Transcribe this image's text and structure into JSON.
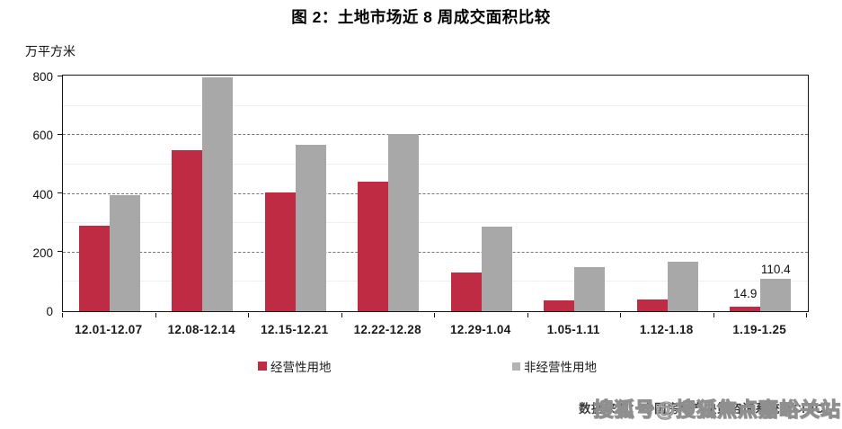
{
  "title": "图 2：土地市场近 8 周成交面积比较",
  "chart_data": {
    "type": "bar",
    "title": "图 2：土地市场近 8 周成交面积比较",
    "unit_label": "万平方米",
    "xlabel": "",
    "ylabel": "万平方米",
    "ylim": [
      0,
      800
    ],
    "yticks": [
      0,
      200,
      400,
      600,
      800
    ],
    "grid": "horizontal dashed at 200/400/600, faint minor at 100/300/500/700",
    "legend_position": "bottom",
    "categories": [
      "12.01-12.07",
      "12.08-12.14",
      "12.15-12.21",
      "12.22-12.28",
      "12.29-1.04",
      "1.05-1.11",
      "1.12-1.18",
      "1.19-1.25"
    ],
    "series": [
      {
        "name": "经营性用地",
        "color": "#be2b42",
        "values": [
          290,
          548,
          404,
          440,
          131,
          38,
          40,
          14.9
        ]
      },
      {
        "name": "非经营性用地",
        "color": "#a8a8a8",
        "values": [
          394,
          796,
          566,
          604,
          289,
          149,
          168,
          110.4
        ]
      }
    ],
    "annotations": [
      {
        "series_index": 0,
        "category_index": 7,
        "text": "14.9"
      },
      {
        "series_index": 1,
        "category_index": 7,
        "text": "110.4"
      }
    ]
  },
  "legend": {
    "items": [
      {
        "label": "经营性用地",
        "color": "#be2b42"
      },
      {
        "label": "非经营性用地",
        "color": "#b3b3b3"
      }
    ]
  },
  "footer": {
    "source": "数据来源：中国房地产决策咨询系统（CRIC）",
    "watermark": "搜狐号@搜狐焦点嘉峪关站"
  }
}
